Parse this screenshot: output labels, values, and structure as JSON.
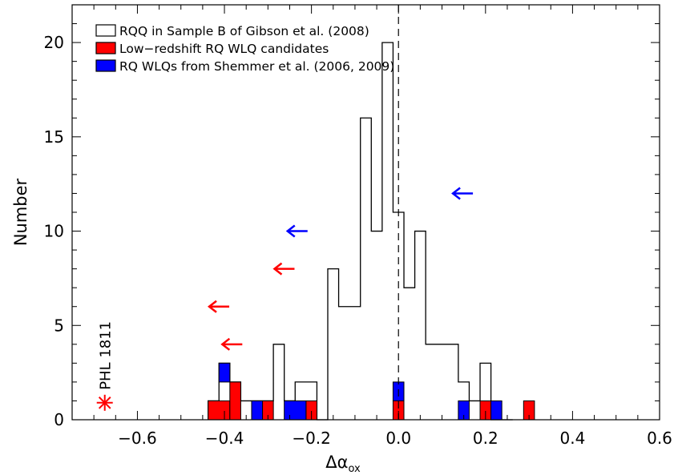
{
  "chart_data": {
    "type": "histogram",
    "xlabel": "Δα",
    "xlabel_sub": "ox",
    "ylabel": "Number",
    "xlim": [
      -0.75,
      0.6
    ],
    "ylim": [
      0,
      22
    ],
    "x_ticks": [
      -0.6,
      -0.4,
      -0.2,
      0.0,
      0.2,
      0.4,
      0.6
    ],
    "x_tick_labels": [
      "−0.6",
      "−0.4",
      "−0.2",
      "0.0",
      "0.2",
      "0.4",
      "0.6"
    ],
    "y_ticks": [
      0,
      5,
      10,
      15,
      20
    ],
    "y_tick_labels": [
      "0",
      "5",
      "10",
      "15",
      "20"
    ],
    "reference_line_x": 0.0,
    "bin_width": 0.025,
    "legend": [
      {
        "label": "RQQ in Sample B of Gibson et al. (2008)",
        "color": "#ffffff",
        "style": "outline"
      },
      {
        "label": "Low−redshift RQ WLQ candidates",
        "color": "#ff0000",
        "style": "filled"
      },
      {
        "label": "RQ WLQs from Shemmer et al. (2006, 2009)",
        "color": "#0000ff",
        "style": "filled"
      }
    ],
    "series": [
      {
        "name": "RQQ in Sample B of Gibson et al. (2008)",
        "bin_edges": [
          -0.4375,
          -0.4125,
          -0.3875,
          -0.3625,
          -0.3375,
          -0.3125,
          -0.2875,
          -0.2625,
          -0.2375,
          -0.2125,
          -0.1875,
          -0.1625,
          -0.1375,
          -0.1125,
          -0.0875,
          -0.0625,
          -0.0375,
          -0.0125,
          0.0125,
          0.0375,
          0.0625,
          0.0875,
          0.1125,
          0.1375,
          0.1625,
          0.1875,
          0.2125,
          0.2375,
          0.2625
        ],
        "counts": [
          1,
          3,
          2,
          1,
          1,
          1,
          4,
          1,
          2,
          2,
          0,
          8,
          6,
          6,
          16,
          10,
          20,
          11,
          7,
          10,
          4,
          4,
          4,
          2,
          1,
          3,
          0,
          0
        ]
      },
      {
        "name": "Low−redshift RQ WLQ candidates",
        "bins": [
          {
            "x0": -0.4375,
            "x1": -0.3875,
            "count": 1
          },
          {
            "x0": -0.3875,
            "x1": -0.3625,
            "count": 2
          },
          {
            "x0": -0.3125,
            "x1": -0.2875,
            "count": 1
          },
          {
            "x0": -0.2125,
            "x1": -0.1875,
            "count": 1
          },
          {
            "x0": -0.0125,
            "x1": 0.0125,
            "count": 1
          },
          {
            "x0": 0.1875,
            "x1": 0.2125,
            "count": 1
          },
          {
            "x0": 0.2875,
            "x1": 0.3125,
            "count": 1
          }
        ]
      },
      {
        "name": "RQ WLQs from Shemmer et al. (2006, 2009)",
        "bins": [
          {
            "x0": -0.4125,
            "x1": -0.3875,
            "base": 2,
            "count": 1
          },
          {
            "x0": -0.3375,
            "x1": -0.3125,
            "base": 0,
            "count": 1
          },
          {
            "x0": -0.2625,
            "x1": -0.2125,
            "base": 0,
            "count": 1
          },
          {
            "x0": -0.0125,
            "x1": 0.0125,
            "base": 1,
            "count": 1
          },
          {
            "x0": 0.1375,
            "x1": 0.1625,
            "base": 0,
            "count": 1
          },
          {
            "x0": 0.2125,
            "x1": 0.2375,
            "base": 0,
            "count": 1
          }
        ]
      }
    ],
    "upper_limits": [
      {
        "x": -0.405,
        "y": 4,
        "color": "#ff0000"
      },
      {
        "x": -0.435,
        "y": 6,
        "color": "#ff0000"
      },
      {
        "x": -0.285,
        "y": 8,
        "color": "#ff0000"
      },
      {
        "x": -0.255,
        "y": 10,
        "color": "#0000ff"
      },
      {
        "x": 0.125,
        "y": 12,
        "color": "#0000ff"
      }
    ],
    "annotation": {
      "text": "PHL 1811",
      "x": -0.675,
      "y": 0.9,
      "marker": "asterisk",
      "color": "#ff0000"
    }
  }
}
